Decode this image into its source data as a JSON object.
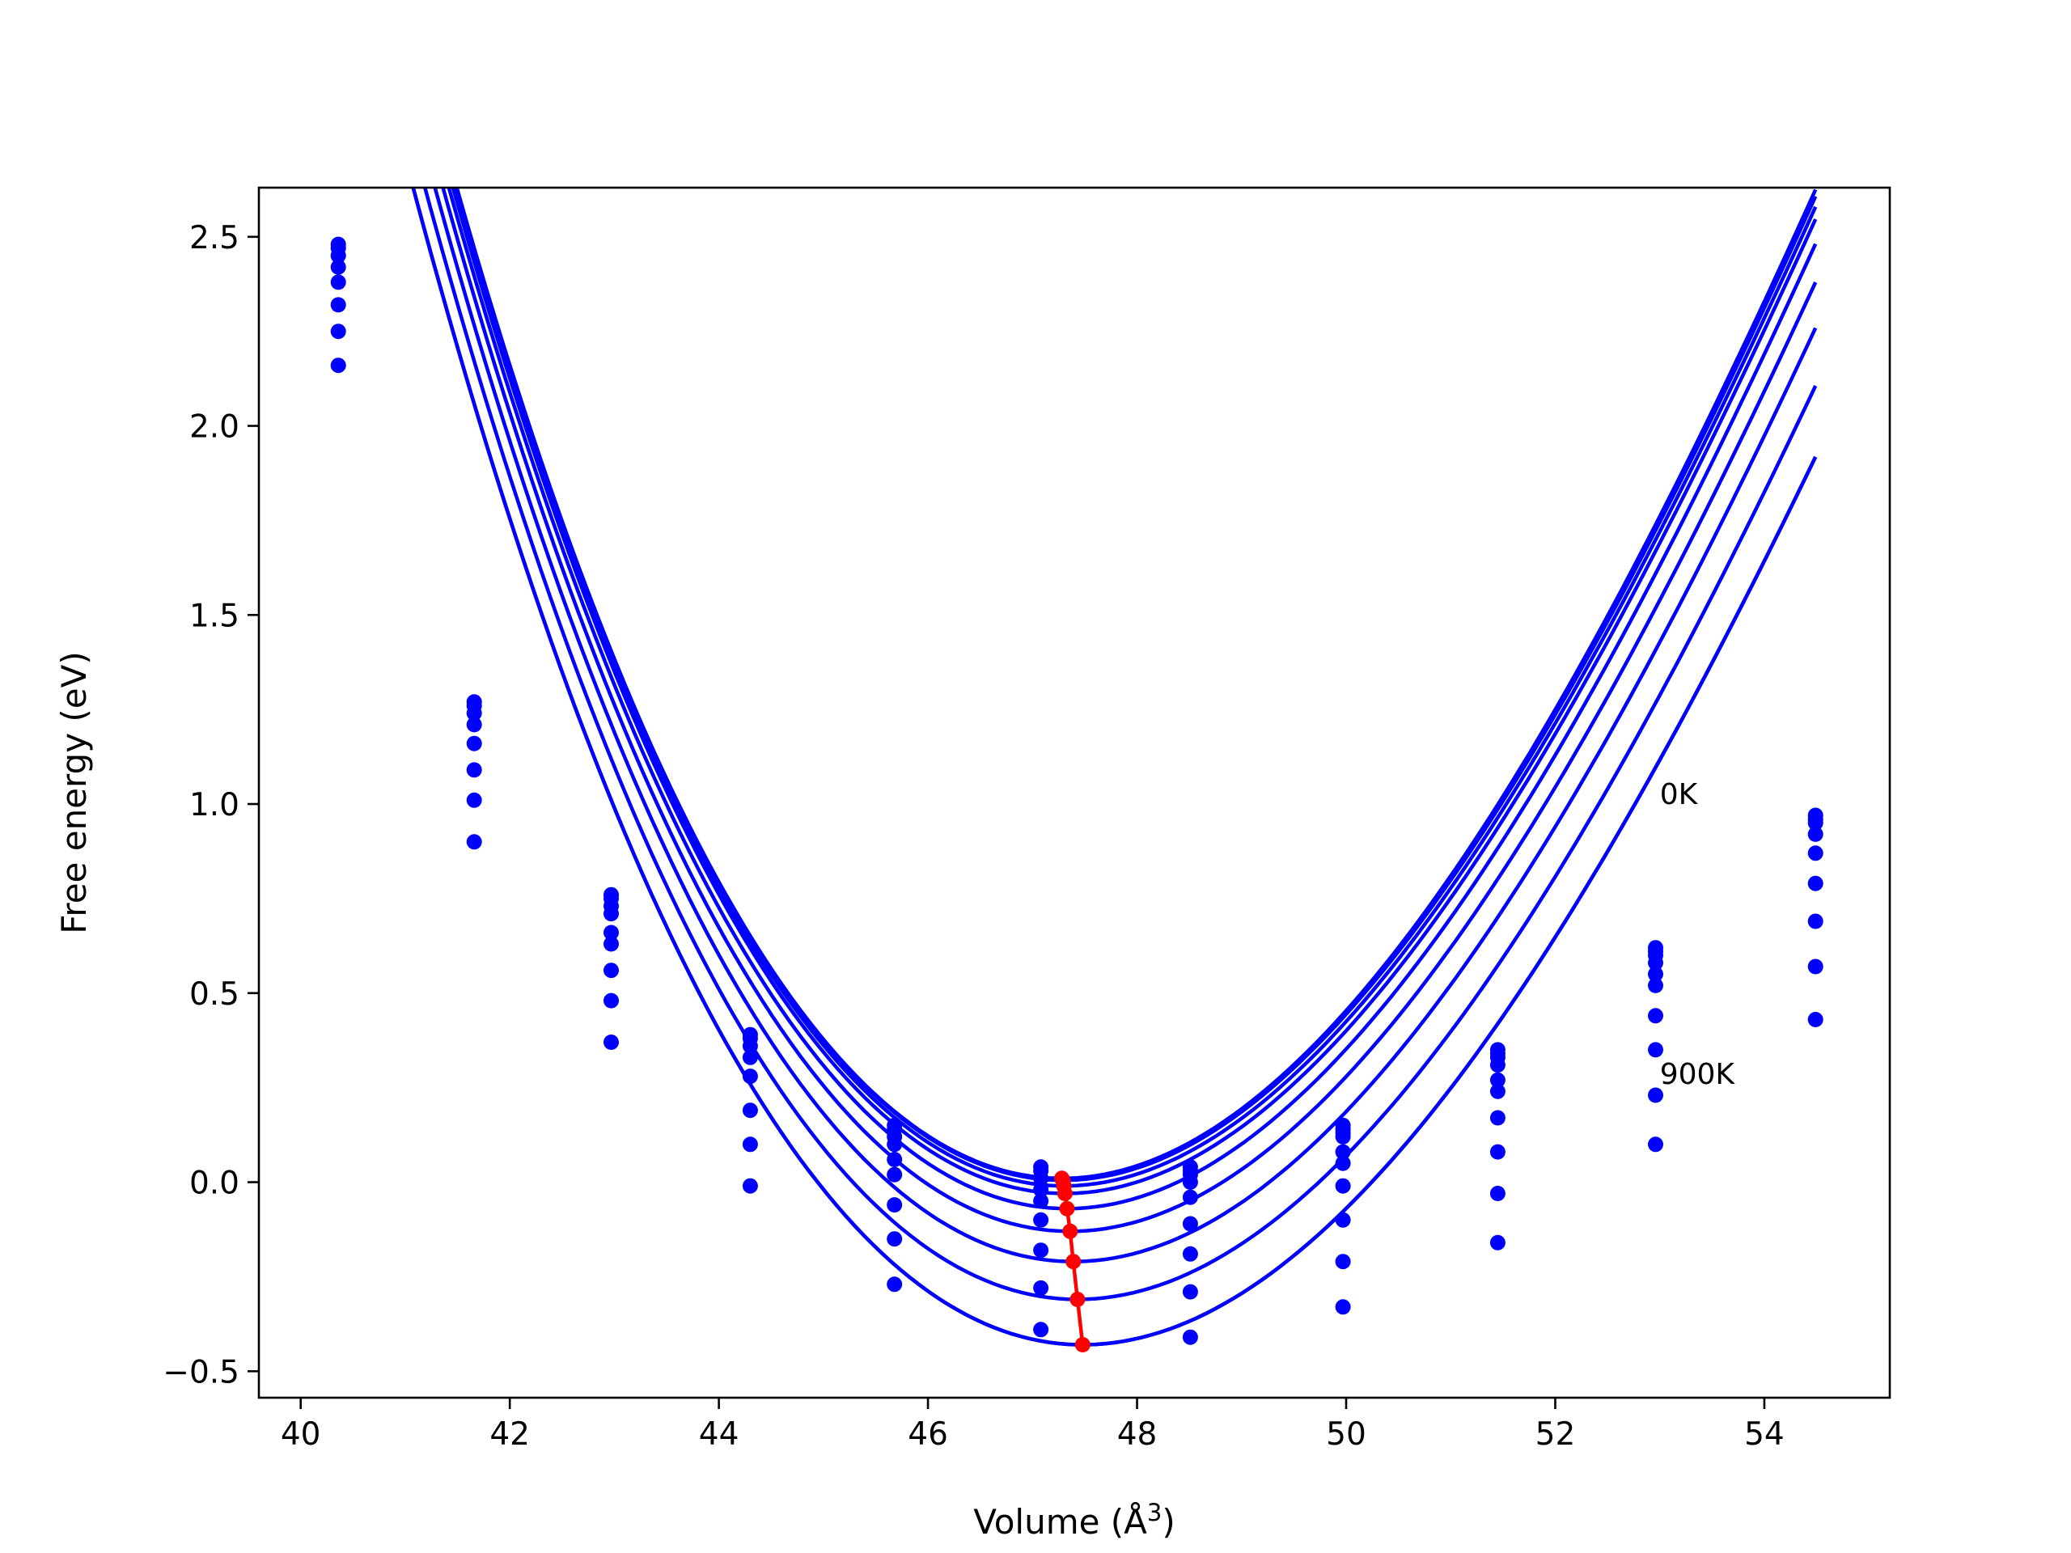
{
  "chart_data": {
    "type": "line",
    "title": "",
    "xlabel": "Volume (Å",
    "xlabel_sup": "3",
    "xlabel_end": ")",
    "ylabel": "Free energy (eV)",
    "xlim": [
      39.6,
      55.2
    ],
    "ylim": [
      -0.57,
      2.63
    ],
    "xticks": [
      40,
      42,
      44,
      46,
      48,
      50,
      52,
      54
    ],
    "xtick_labels": [
      "40",
      "42",
      "44",
      "46",
      "48",
      "50",
      "52",
      "54"
    ],
    "yticks": [
      -0.5,
      0.0,
      0.5,
      1.0,
      1.5,
      2.0,
      2.5
    ],
    "ytick_labels": [
      "−0.5",
      "0.0",
      "0.5",
      "1.0",
      "1.5",
      "2.0",
      "2.5"
    ],
    "grid": false,
    "line_color": "#0000ff",
    "min_path_color": "#ff0000",
    "volumes": [
      40.36,
      41.66,
      42.97,
      44.3,
      45.68,
      47.08,
      48.51,
      49.97,
      51.45,
      52.96,
      54.49
    ],
    "series": [
      {
        "label": "0K",
        "fit": {
          "e0": 0.01,
          "v0": 47.28,
          "a": 0.0658,
          "b": -0.00215
        },
        "points": [
          2.48,
          1.27,
          0.76,
          0.39,
          0.15,
          0.04,
          0.04,
          0.15,
          0.35,
          0.62,
          0.97
        ]
      },
      {
        "fit": {
          "e0": 0.005,
          "v0": 47.29,
          "a": 0.0656,
          "b": -0.00214
        },
        "points": [
          2.47,
          1.26,
          0.75,
          0.38,
          0.14,
          0.03,
          0.03,
          0.14,
          0.34,
          0.61,
          0.96
        ]
      },
      {
        "fit": {
          "e0": -0.01,
          "v0": 47.3,
          "a": 0.0654,
          "b": -0.00213
        },
        "points": [
          2.45,
          1.24,
          0.73,
          0.36,
          0.12,
          0.01,
          0.02,
          0.13,
          0.33,
          0.6,
          0.95
        ]
      },
      {
        "fit": {
          "e0": -0.03,
          "v0": 47.31,
          "a": 0.0652,
          "b": -0.00212
        },
        "points": [
          2.42,
          1.21,
          0.71,
          0.33,
          0.1,
          -0.02,
          0.0,
          0.12,
          0.31,
          0.58,
          0.92
        ]
      },
      {
        "fit": {
          "e0": -0.07,
          "v0": 47.33,
          "a": 0.0648,
          "b": -0.0021
        },
        "points": [
          2.38,
          1.16,
          0.66,
          0.28,
          0.06,
          -0.05,
          -0.04,
          0.08,
          0.27,
          0.55,
          0.87
        ]
      },
      {
        "fit": {
          "e0": -0.13,
          "v0": 47.36,
          "a": 0.0642,
          "b": -0.00208
        },
        "points": [
          2.32,
          1.09,
          0.63,
          0.19,
          0.02,
          -0.1,
          -0.11,
          0.05,
          0.24,
          0.52,
          0.79
        ]
      },
      {
        "fit": {
          "e0": -0.21,
          "v0": 47.39,
          "a": 0.0636,
          "b": -0.00206
        },
        "points": [
          2.25,
          1.01,
          0.56,
          0.1,
          -0.06,
          -0.18,
          -0.19,
          -0.01,
          0.17,
          0.44,
          0.69
        ]
      },
      {
        "fit": {
          "e0": -0.31,
          "v0": 47.43,
          "a": 0.0628,
          "b": -0.00203
        },
        "points": [
          2.16,
          0.9,
          0.48,
          -0.01,
          -0.15,
          -0.28,
          -0.29,
          -0.1,
          0.08,
          0.35,
          0.57
        ]
      },
      {
        "label": "900K",
        "fit": {
          "e0": -0.43,
          "v0": 47.48,
          "a": 0.0618,
          "b": -0.002
        },
        "points": [
          null,
          null,
          0.37,
          null,
          -0.27,
          -0.39,
          -0.41,
          -0.21,
          -0.03,
          0.23,
          0.43
        ]
      },
      {
        "fit": {
          "e0": -0.43,
          "v0": 47.48,
          "a": 0.0618,
          "b": -0.002
        },
        "points": [
          null,
          null,
          null,
          null,
          null,
          null,
          null,
          -0.33,
          -0.16,
          0.1,
          null
        ]
      }
    ],
    "min_path": {
      "x": [
        47.28,
        47.29,
        47.3,
        47.31,
        47.33,
        47.36,
        47.39,
        47.43,
        47.48
      ],
      "y": [
        0.01,
        0.005,
        -0.01,
        -0.03,
        -0.07,
        -0.13,
        -0.21,
        -0.31,
        -0.43
      ]
    },
    "annotations": [
      {
        "text": "0K",
        "x": 53.0,
        "y": 1.0
      },
      {
        "text": "900K",
        "x": 53.0,
        "y": 0.26
      }
    ]
  }
}
